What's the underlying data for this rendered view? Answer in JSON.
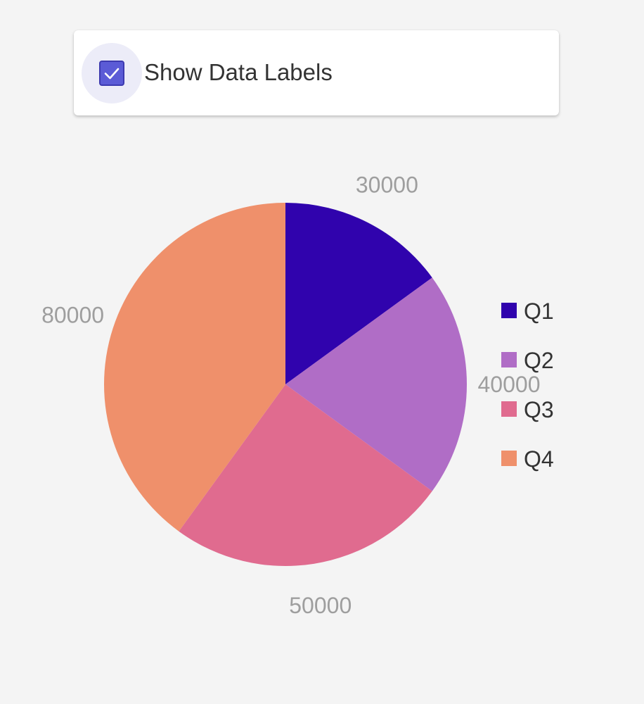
{
  "controls": {
    "show_data_labels": {
      "label": "Show Data Labels",
      "checked": true
    }
  },
  "colors": {
    "checkbox_fill": "#5b5bd6",
    "checkbox_halo": "#ececf8",
    "data_label": "#9e9e9e",
    "legend_text": "#333333"
  },
  "chart_data": {
    "type": "pie",
    "categories": [
      "Q1",
      "Q2",
      "Q3",
      "Q4"
    ],
    "values": [
      30000,
      40000,
      50000,
      80000
    ],
    "colors": [
      "#3003ad",
      "#b06dc6",
      "#e06b8f",
      "#ef906b"
    ],
    "show_data_labels": true,
    "legend": {
      "position": "right"
    },
    "title": ""
  }
}
